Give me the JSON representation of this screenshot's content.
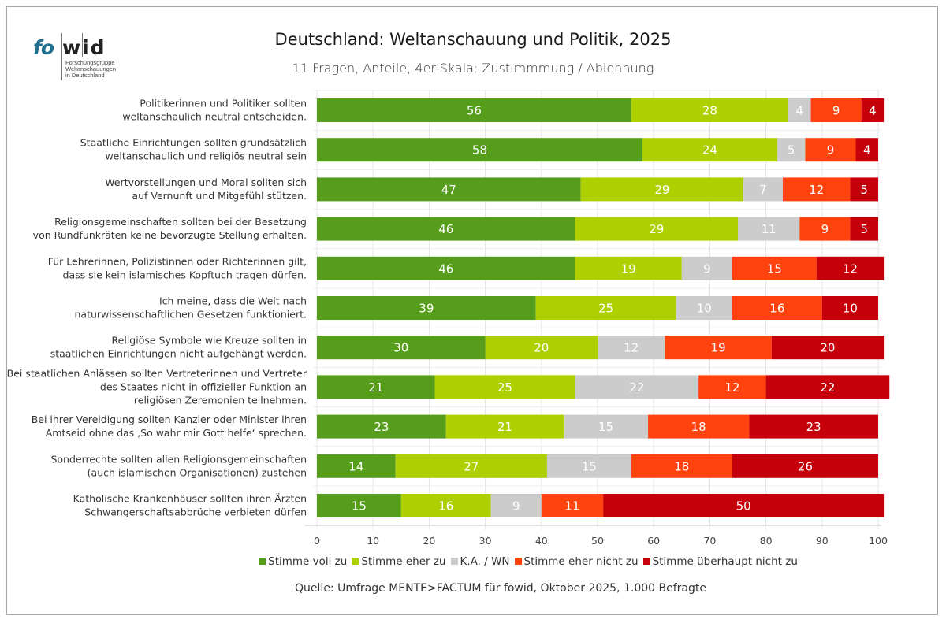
{
  "logo": {
    "part1": "fo",
    "part2": "wid",
    "subtitle": "Forschungsgruppe\nWeltanschauungen\nin Deutschland"
  },
  "chart_data": {
    "type": "bar",
    "orientation": "horizontal",
    "stacked": true,
    "title": "Deutschland: Weltanschauung und Politik, 2025",
    "subtitle": "11 Fragen, Anteile, 4er-Skala: Zustimmmung / Ablehnung",
    "xlabel": "",
    "ylabel": "",
    "xlim": [
      0,
      100
    ],
    "xticks": [
      0,
      10,
      20,
      30,
      40,
      50,
      60,
      70,
      80,
      90,
      100
    ],
    "grid": true,
    "legend_position": "bottom",
    "categories": [
      [
        "Politikerinnen und Politiker sollten",
        "weltanschaulich neutral entscheiden."
      ],
      [
        "Staatliche Einrichtungen sollten grundsätzlich",
        "weltanschaulich und religiös neutral sein"
      ],
      [
        "Wertvorstellungen und Moral sollten sich",
        "auf Vernunft und Mitgefühl stützen."
      ],
      [
        "Religionsgemeinschaften sollten bei der Besetzung",
        "von Rundfunkräten keine bevorzugte Stellung erhalten."
      ],
      [
        "Für Lehrerinnen, Polizistinnen oder Richterinnen gilt,",
        "dass sie kein islamisches Kopftuch tragen dürfen."
      ],
      [
        "Ich meine, dass die Welt nach",
        "naturwissenschaftlichen Gesetzen funktioniert."
      ],
      [
        "Religiöse Symbole wie Kreuze sollten in",
        "staatlichen Einrichtungen nicht aufgehängt werden."
      ],
      [
        "Bei staatlichen Anlässen sollten Vertreterinnen und Vertreter",
        "des Staates nicht in offizieller Funktion an",
        "religiösen Zeremonien teilnehmen."
      ],
      [
        "Bei ihrer Vereidigung sollten Kanzler oder Minister ihren",
        "Amtseid ohne das ‚So wahr mir Gott helfe‘ sprechen."
      ],
      [
        "Sonderrechte sollten allen Religionsgemeinschaften",
        "(auch islamischen Organisationen) zustehen"
      ],
      [
        "Katholische Krankenhäuser sollten ihren Ärzten",
        "Schwangerschaftsabbrüche verbieten dürfen"
      ]
    ],
    "series": [
      {
        "name": "Stimme voll zu",
        "color": "#579d1c",
        "values": [
          56,
          58,
          47,
          46,
          46,
          39,
          30,
          21,
          23,
          14,
          15
        ]
      },
      {
        "name": "Stimme eher zu",
        "color": "#aecf00",
        "values": [
          28,
          24,
          29,
          29,
          19,
          25,
          20,
          25,
          21,
          27,
          16
        ]
      },
      {
        "name": "K.A. / WN",
        "color": "#cccccc",
        "values": [
          4,
          5,
          7,
          11,
          9,
          10,
          12,
          22,
          15,
          15,
          9
        ]
      },
      {
        "name": "Stimme eher nicht zu",
        "color": "#ff420e",
        "values": [
          9,
          9,
          12,
          9,
          15,
          16,
          19,
          12,
          18,
          18,
          11
        ]
      },
      {
        "name": "Stimme überhaupt nicht zu",
        "color": "#c5000b",
        "values": [
          4,
          4,
          5,
          5,
          12,
          10,
          20,
          22,
          23,
          26,
          50
        ]
      }
    ],
    "source": "Quelle: Umfrage MENTE>FACTUM für fowid, Oktober 2025, 1.000 Befragte"
  }
}
